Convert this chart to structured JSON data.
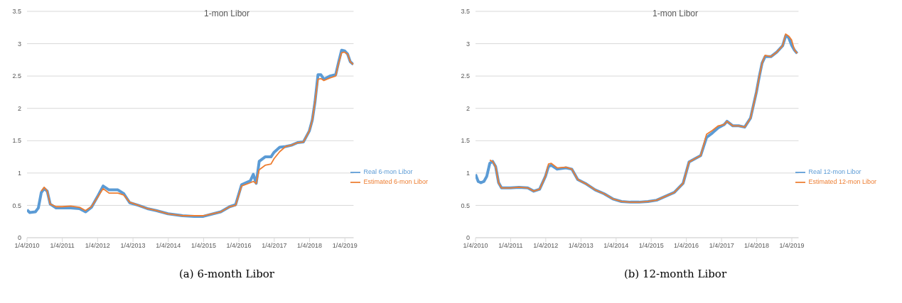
{
  "chart_data": [
    {
      "type": "line",
      "title": "1-mon Libor",
      "annotations": [
        "(a) 6-month Libor"
      ],
      "x": [
        "2010-01-04",
        "2010-02",
        "2010-04",
        "2010-05",
        "2010-06",
        "2010-07",
        "2010-08",
        "2010-09",
        "2010-11",
        "2011-01",
        "2011-04",
        "2011-07",
        "2011-09",
        "2011-11",
        "2012-01",
        "2012-03",
        "2012-05",
        "2012-08",
        "2012-10",
        "2012-12",
        "2013-03",
        "2013-06",
        "2013-09",
        "2014-01",
        "2014-06",
        "2014-10",
        "2015-01",
        "2015-07",
        "2015-10",
        "2015-12",
        "2016-02",
        "2016-05",
        "2016-06",
        "2016-07",
        "2016-08",
        "2016-10",
        "2016-12",
        "2017-01",
        "2017-03",
        "2017-05",
        "2017-07",
        "2017-09",
        "2017-11",
        "2018-01",
        "2018-02",
        "2018-03",
        "2018-04",
        "2018-05",
        "2018-06",
        "2018-08",
        "2018-10",
        "2018-11",
        "2018-12",
        "2019-01",
        "2019-02",
        "2019-03",
        "2019-04"
      ],
      "series": [
        {
          "name": "Real 6-mon Libor",
          "color": "#5b9bd5",
          "values": [
            0.43,
            0.39,
            0.4,
            0.46,
            0.7,
            0.76,
            0.72,
            0.52,
            0.46,
            0.46,
            0.46,
            0.45,
            0.4,
            0.47,
            0.63,
            0.8,
            0.74,
            0.74,
            0.68,
            0.54,
            0.5,
            0.45,
            0.42,
            0.37,
            0.34,
            0.33,
            0.33,
            0.4,
            0.48,
            0.51,
            0.82,
            0.88,
            0.98,
            0.84,
            1.18,
            1.25,
            1.25,
            1.32,
            1.4,
            1.41,
            1.43,
            1.47,
            1.48,
            1.65,
            1.82,
            2.1,
            2.52,
            2.52,
            2.45,
            2.5,
            2.52,
            2.72,
            2.9,
            2.89,
            2.84,
            2.72,
            2.68
          ]
        },
        {
          "name": "Estimated 6-mon Libor",
          "color": "#ed7d31",
          "values": [
            null,
            null,
            null,
            null,
            0.72,
            0.78,
            0.72,
            0.52,
            0.48,
            0.48,
            0.49,
            0.47,
            0.42,
            0.48,
            0.62,
            0.76,
            0.69,
            0.69,
            0.66,
            0.55,
            0.5,
            0.45,
            0.42,
            0.37,
            0.34,
            0.34,
            0.34,
            0.4,
            0.48,
            0.5,
            0.8,
            0.85,
            0.87,
            0.84,
            1.05,
            1.12,
            1.14,
            1.22,
            1.33,
            1.41,
            1.43,
            1.47,
            1.48,
            1.65,
            1.82,
            2.1,
            2.45,
            2.46,
            2.43,
            2.47,
            2.5,
            2.7,
            2.86,
            2.87,
            2.84,
            2.72,
            2.68
          ]
        }
      ],
      "xlim": [
        "2010-01-04",
        "2019-04-04"
      ],
      "xticks": [
        {
          "value": "2010-01-04",
          "label": "1/4/2010"
        },
        {
          "value": "2011-01-04",
          "label": "1/4/2011"
        },
        {
          "value": "2012-01-04",
          "label": "1/4/2012"
        },
        {
          "value": "2013-01-04",
          "label": "1/4/2013"
        },
        {
          "value": "2014-01-04",
          "label": "1/4/2014"
        },
        {
          "value": "2015-01-04",
          "label": "1/4/2015"
        },
        {
          "value": "2016-01-04",
          "label": "1/4/2016"
        },
        {
          "value": "2017-01-04",
          "label": "1/4/2017"
        },
        {
          "value": "2018-01-04",
          "label": "1/4/2018"
        },
        {
          "value": "2019-01-04",
          "label": "1/4/2019"
        }
      ],
      "ylim": [
        0,
        3.5
      ],
      "yticks": [
        0,
        0.5,
        1,
        1.5,
        2,
        2.5,
        3,
        3.5
      ],
      "grid": "y",
      "legend": "right"
    },
    {
      "type": "line",
      "title": "1-mon Libor",
      "annotations": [
        "(b) 12-month Libor"
      ],
      "x": [
        "2010-01-04",
        "2010-02",
        "2010-03",
        "2010-04",
        "2010-05",
        "2010-06",
        "2010-07",
        "2010-08",
        "2010-09",
        "2010-10",
        "2011-01",
        "2011-04",
        "2011-07",
        "2011-09",
        "2011-11",
        "2012-01",
        "2012-02",
        "2012-03",
        "2012-05",
        "2012-08",
        "2012-10",
        "2012-12",
        "2013-03",
        "2013-06",
        "2013-09",
        "2013-12",
        "2014-03",
        "2014-06",
        "2014-09",
        "2014-12",
        "2015-03",
        "2015-06",
        "2015-09",
        "2015-12",
        "2016-02",
        "2016-04",
        "2016-06",
        "2016-08",
        "2016-10",
        "2016-12",
        "2017-02",
        "2017-03",
        "2017-05",
        "2017-07",
        "2017-09",
        "2017-11",
        "2018-01",
        "2018-02",
        "2018-03",
        "2018-04",
        "2018-06",
        "2018-08",
        "2018-10",
        "2018-11",
        "2018-12",
        "2019-01",
        "2019-02",
        "2019-03"
      ],
      "series": [
        {
          "name": "Real 12-mon Libor",
          "color": "#5b9bd5",
          "values": [
            0.98,
            0.87,
            0.85,
            0.87,
            0.95,
            1.15,
            1.18,
            1.1,
            0.85,
            0.77,
            0.77,
            0.78,
            0.77,
            0.72,
            0.75,
            0.95,
            1.1,
            1.12,
            1.06,
            1.08,
            1.06,
            0.9,
            0.83,
            0.74,
            0.68,
            0.6,
            0.56,
            0.55,
            0.55,
            0.56,
            0.58,
            0.64,
            0.7,
            0.84,
            1.17,
            1.22,
            1.27,
            1.55,
            1.62,
            1.7,
            1.75,
            1.8,
            1.73,
            1.73,
            1.71,
            1.85,
            2.25,
            2.5,
            2.7,
            2.8,
            2.8,
            2.87,
            2.97,
            3.12,
            3.1,
            2.98,
            2.9,
            2.85
          ]
        },
        {
          "name": "Estimated 12-mon Libor",
          "color": "#ed7d31",
          "values": [
            null,
            null,
            null,
            null,
            null,
            1.2,
            1.18,
            1.1,
            0.85,
            0.77,
            0.77,
            0.78,
            0.77,
            0.72,
            0.75,
            0.95,
            1.14,
            1.15,
            1.08,
            1.09,
            1.06,
            0.9,
            0.83,
            0.74,
            0.68,
            0.6,
            0.56,
            0.55,
            0.55,
            0.56,
            0.58,
            0.64,
            0.7,
            0.84,
            1.17,
            1.22,
            1.27,
            1.6,
            1.66,
            1.73,
            1.75,
            1.8,
            1.73,
            1.73,
            1.71,
            1.85,
            2.25,
            2.5,
            2.7,
            2.82,
            2.8,
            2.87,
            2.97,
            3.15,
            3.12,
            3.06,
            2.9,
            2.85
          ]
        }
      ],
      "xlim": [
        "2010-01-04",
        "2019-03-15"
      ],
      "xticks": [
        {
          "value": "2010-01-04",
          "label": "1/4/2010"
        },
        {
          "value": "2011-01-04",
          "label": "1/4/2011"
        },
        {
          "value": "2012-01-04",
          "label": "1/4/2012"
        },
        {
          "value": "2013-01-04",
          "label": "1/4/2013"
        },
        {
          "value": "2014-01-04",
          "label": "1/4/2014"
        },
        {
          "value": "2015-01-04",
          "label": "1/4/2015"
        },
        {
          "value": "2016-01-04",
          "label": "1/4/2016"
        },
        {
          "value": "2017-01-04",
          "label": "1/4/2017"
        },
        {
          "value": "2018-01-04",
          "label": "1/4/2018"
        },
        {
          "value": "2019-01-04",
          "label": "1/4/2019"
        }
      ],
      "ylim": [
        0,
        3.5
      ],
      "yticks": [
        0,
        0.5,
        1,
        1.5,
        2,
        2.5,
        3,
        3.5
      ],
      "grid": "y",
      "legend": "right"
    }
  ]
}
